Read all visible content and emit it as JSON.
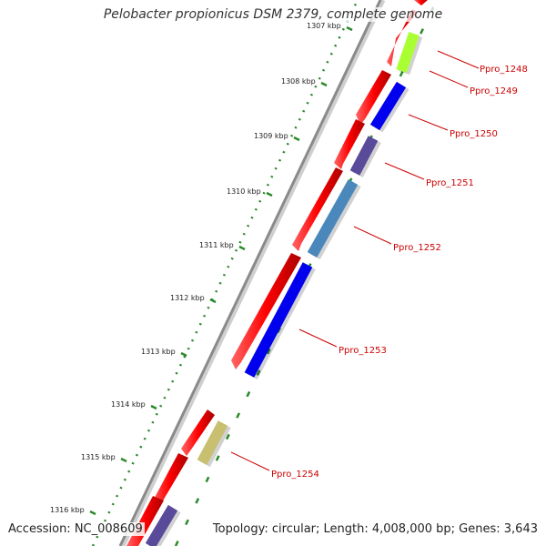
{
  "title": "Pelobacter propionicus DSM 2379, complete genome",
  "accession": "Accession: NC_008609",
  "topology": "Topology: circular; Length: 4,008,000 bp; Genes: 3,643",
  "kbp_labels": [
    "1307 kbp",
    "1308 kbp",
    "1309 kbp",
    "1310 kbp",
    "1311 kbp",
    "1312 kbp",
    "1313 kbp",
    "1314 kbp",
    "1315 kbp",
    "1316 kbp"
  ],
  "gene_labels": [
    "Ppro_1248",
    "Ppro_1249",
    "Ppro_1250",
    "Ppro_1251",
    "Ppro_1252",
    "Ppro_1253",
    "Ppro_1254"
  ],
  "colors": {
    "backbone": "#8a8a8a",
    "tick": "#2a8a2a",
    "forward_gene": "#ff0000",
    "label": "#cc0000",
    "reverse_genes": [
      "#aaff33",
      "#0000ee",
      "#5a4a9a",
      "#4a88bb",
      "#0000ee",
      "#c8c070",
      "#5a4a9a"
    ]
  }
}
